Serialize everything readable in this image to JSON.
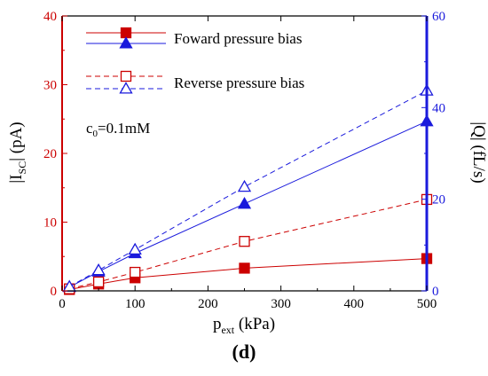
{
  "chart_data": {
    "type": "line",
    "x_label": {
      "main": "p",
      "sub": "ext",
      "rest": " (kPa)"
    },
    "y_left_label": {
      "pre": "|I",
      "sub": "SC",
      "post": "| (pA)"
    },
    "y_right_label": "|Q| (fL/s)",
    "annotation": {
      "main": "c",
      "sub": "0",
      "rest": "=0.1mM"
    },
    "panel_label": {
      "open": "(",
      "letter": "d",
      "close": ")"
    },
    "xlim": [
      0,
      500
    ],
    "ylim_left": [
      0,
      40
    ],
    "ylim_right": [
      0,
      60
    ],
    "x_ticks": [
      0,
      100,
      200,
      300,
      400,
      500
    ],
    "y_left_ticks": [
      0,
      10,
      20,
      30,
      40
    ],
    "y_right_ticks": [
      0,
      20,
      40,
      60
    ],
    "legend": [
      {
        "label": "",
        "color": "#cc0000",
        "marker": "filled-square",
        "dashed": false
      },
      {
        "label": "Foward pressure bias",
        "color": "#1a1adc",
        "marker": "filled-triangle",
        "dashed": false
      },
      {
        "label": "",
        "color": "#cc0000",
        "marker": "open-square",
        "dashed": true
      },
      {
        "label": "Reverse pressure bias",
        "color": "#1a1adc",
        "marker": "open-triangle",
        "dashed": true
      }
    ],
    "series": [
      {
        "axis": "left",
        "color": "#cc0000",
        "marker": "filled-square",
        "dashed": false,
        "x": [
          10,
          50,
          100,
          250,
          500
        ],
        "y": [
          0.2,
          1.0,
          1.9,
          3.3,
          4.7
        ]
      },
      {
        "axis": "right",
        "color": "#1a1adc",
        "marker": "filled-triangle",
        "dashed": false,
        "x": [
          10,
          50,
          100,
          250,
          500
        ],
        "y": [
          0.8,
          4.2,
          8.2,
          19.0,
          37.0
        ]
      },
      {
        "axis": "left",
        "color": "#cc0000",
        "marker": "open-square",
        "dashed": true,
        "x": [
          10,
          50,
          100,
          250,
          500
        ],
        "y": [
          0.3,
          1.3,
          2.7,
          7.2,
          13.3
        ]
      },
      {
        "axis": "right",
        "color": "#1a1adc",
        "marker": "open-triangle",
        "dashed": true,
        "x": [
          10,
          50,
          100,
          250,
          500
        ],
        "y": [
          0.9,
          4.5,
          9.0,
          22.7,
          43.7
        ]
      }
    ],
    "colors": {
      "left_axis": "#cc0000",
      "right_axis": "#1a1adc",
      "bottom_axis": "#000000"
    }
  }
}
